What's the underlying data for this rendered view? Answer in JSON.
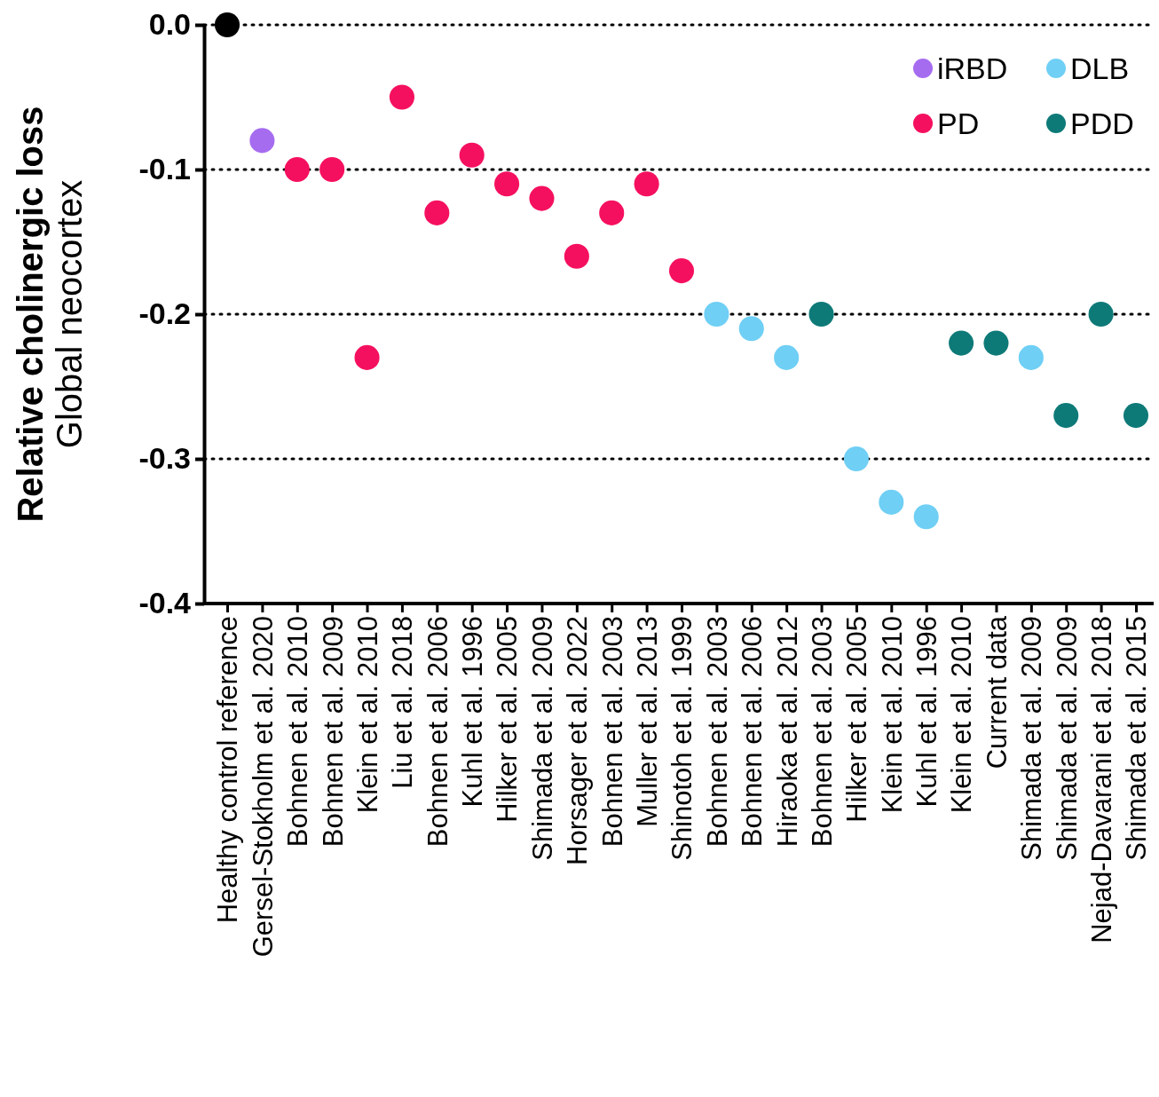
{
  "chart_data": {
    "type": "scatter",
    "ylabel": "Relative cholinergic loss\nGlobal neocortex",
    "categories": [
      "Healthy control reference",
      "Gersel-Stokholm et al. 2020",
      "Bohnen et al. 2010",
      "Bohnen et al. 2009",
      "Klein et al. 2010",
      "Liu et al. 2018",
      "Bohnen et al. 2006",
      "Kuhl et al. 1996",
      "Hilker et al. 2005",
      "Shimada et al. 2009",
      "Horsager et al. 2022",
      "Bohnen et al. 2003",
      "Muller et al. 2013",
      "Shinotoh et al. 1999",
      "Bohnen et al. 2003",
      "Bohnen et al. 2006",
      "Hiraoka et al. 2012",
      "Bohnen et al. 2003",
      "Hilker et al. 2005",
      "Klein et al. 2010",
      "Kuhl et al. 1996",
      "Klein et al. 2010",
      "Current data",
      "Shimada et al. 2009",
      "Shimada et al. 2009",
      "Nejad-Davarani et al. 2018",
      "Shimada et al. 2015"
    ],
    "series": [
      {
        "color": "#000000",
        "values": [
          0,
          null,
          null,
          null,
          null,
          null,
          null,
          null,
          null,
          null,
          null,
          null,
          null,
          null,
          null,
          null,
          null,
          null,
          null,
          null,
          null,
          null,
          null,
          null,
          null,
          null,
          null
        ]
      },
      {
        "name": "iRBD",
        "color": "#a66cf0",
        "values": [
          null,
          -0.08,
          null,
          null,
          null,
          null,
          null,
          null,
          null,
          null,
          null,
          null,
          null,
          null,
          null,
          null,
          null,
          null,
          null,
          null,
          null,
          null,
          null,
          null,
          null,
          null,
          null
        ]
      },
      {
        "name": "PD",
        "color": "#f5105f",
        "values": [
          null,
          null,
          -0.1,
          -0.1,
          -0.23,
          -0.05,
          -0.13,
          -0.09,
          -0.11,
          -0.12,
          -0.16,
          -0.13,
          -0.11,
          -0.17,
          null,
          null,
          null,
          null,
          null,
          null,
          null,
          null,
          null,
          null,
          null,
          null,
          null
        ]
      },
      {
        "name": "DLB",
        "color": "#6fcff5",
        "values": [
          null,
          null,
          null,
          null,
          null,
          null,
          null,
          null,
          null,
          null,
          null,
          null,
          null,
          null,
          -0.2,
          -0.21,
          -0.23,
          null,
          -0.3,
          -0.33,
          -0.34,
          null,
          null,
          -0.23,
          null,
          null,
          null
        ]
      },
      {
        "name": "PDD",
        "color": "#0e7a78",
        "values": [
          null,
          null,
          null,
          null,
          null,
          null,
          null,
          null,
          null,
          null,
          null,
          null,
          null,
          null,
          null,
          null,
          null,
          -0.2,
          null,
          null,
          null,
          -0.22,
          -0.22,
          null,
          -0.27,
          -0.2,
          -0.27
        ]
      }
    ],
    "ylim": [
      -0.4,
      0
    ],
    "yticks": [
      {
        "value": 0,
        "label": "0.0"
      },
      {
        "value": -0.1,
        "label": "-0.1"
      },
      {
        "value": -0.2,
        "label": "-0.2"
      },
      {
        "value": -0.3,
        "label": "-0.3"
      },
      {
        "value": -0.4,
        "label": "-0.4"
      }
    ],
    "grid": "y",
    "legend": "top right",
    "marker": "circle"
  }
}
